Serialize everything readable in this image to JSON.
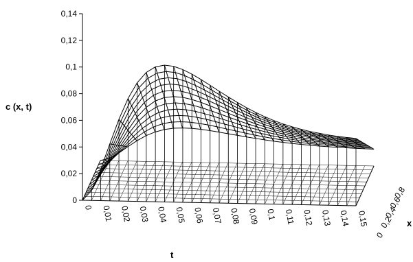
{
  "chart_data": {
    "type": "surface",
    "title": "",
    "zlabel": "c (x, t)",
    "xlabel": "t",
    "ylabel": "x",
    "zlim": [
      0,
      0.14
    ],
    "z_ticks": [
      "0",
      "0,02",
      "0,04",
      "0,06",
      "0,08",
      "0,1",
      "0,12",
      "0,14"
    ],
    "t_ticks": [
      "0",
      "0,01",
      "0,02",
      "0,03",
      "0,04",
      "0,05",
      "0,06",
      "0,07",
      "0,08",
      "0,09",
      "0,1",
      "0,11",
      "0,12",
      "0,13",
      "0,14",
      "0,15"
    ],
    "x_ticks": [
      "0",
      "0,2",
      "0,4",
      "0,6",
      "0,8"
    ],
    "t_range": [
      0,
      0.15
    ],
    "x_range": [
      0,
      1
    ],
    "grid": false,
    "legend": "none",
    "surface": {
      "t": [
        0,
        0.005,
        0.01,
        0.015,
        0.02,
        0.025,
        0.03,
        0.035,
        0.04,
        0.045,
        0.05,
        0.055,
        0.06,
        0.065,
        0.07,
        0.075,
        0.08,
        0.085,
        0.09,
        0.095,
        0.1,
        0.105,
        0.11,
        0.115,
        0.12,
        0.125,
        0.13,
        0.135,
        0.14,
        0.145,
        0.15
      ],
      "x": [
        0,
        0.1,
        0.2,
        0.3,
        0.4,
        0.5,
        0.6,
        0.7,
        0.8,
        0.9,
        1
      ],
      "c_at_x0": [
        0,
        0.0075,
        0.0234,
        0.0427,
        0.0613,
        0.0771,
        0.089,
        0.0969,
        0.1012,
        0.1026,
        0.1019,
        0.0996,
        0.0963,
        0.0924,
        0.0882,
        0.0839,
        0.0797,
        0.0757,
        0.0719,
        0.0685,
        0.0654,
        0.0627,
        0.0603,
        0.0583,
        0.0565,
        0.055,
        0.0538,
        0.0527,
        0.0518,
        0.0511,
        0.0505
      ],
      "c_at_x1": [
        0,
        0.0019,
        0.0058,
        0.0107,
        0.0153,
        0.0193,
        0.0222,
        0.0242,
        0.0253,
        0.0256,
        0.0255,
        0.0249,
        0.0241,
        0.0231,
        0.022,
        0.021,
        0.0199,
        0.0189,
        0.018,
        0.0171,
        0.0164,
        0.0157,
        0.0151,
        0.0146,
        0.0141,
        0.0138,
        0.0134,
        0.0132,
        0.013,
        0.0128,
        0.0126
      ],
      "profile_in_x": "linear from c_at_x0 to c_at_x1"
    }
  },
  "colors": {
    "line": "#000000",
    "background": "#ffffff"
  }
}
